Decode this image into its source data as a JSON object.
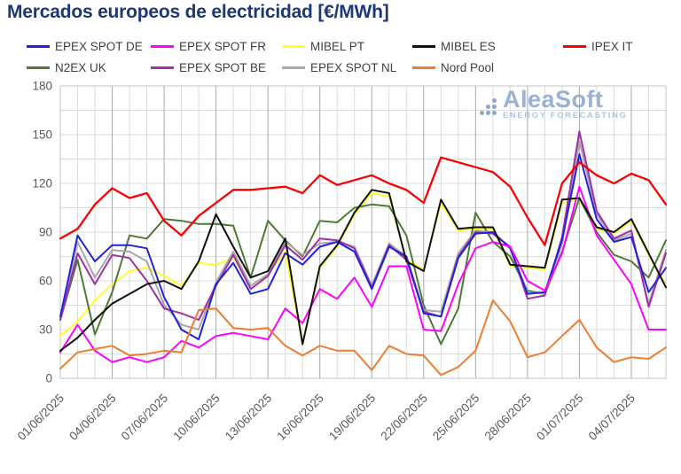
{
  "title": "Mercados europeos de electricidad [€/MWh]",
  "logo": {
    "name": "AleaSoft",
    "subtitle": "ENERGY FORECASTING"
  },
  "axis": {
    "label_color": "#595959",
    "grid_minor_color": "#dcdcdc",
    "grid_major_color": "#a9a9a9",
    "border_color": "#c6c6c6"
  },
  "chart_data": {
    "type": "line",
    "title": "Mercados europeos de electricidad [€/MWh]",
    "xlabel": "",
    "ylabel": "",
    "ylim": [
      0,
      180
    ],
    "y_major_step": 30,
    "y_minor_step": 15,
    "grid": true,
    "legend_position": "top",
    "x_tick_every": 3,
    "x_tick_labels": [
      "01/06/2025",
      "04/06/2025",
      "07/06/2025",
      "10/06/2025",
      "13/06/2025",
      "16/06/2025",
      "19/06/2025",
      "22/06/2025",
      "25/06/2025",
      "28/06/2025",
      "01/07/2025",
      "04/07/2025"
    ],
    "dates": [
      "01/06/2025",
      "02/06/2025",
      "03/06/2025",
      "04/06/2025",
      "05/06/2025",
      "06/06/2025",
      "07/06/2025",
      "08/06/2025",
      "09/06/2025",
      "10/06/2025",
      "11/06/2025",
      "12/06/2025",
      "13/06/2025",
      "14/06/2025",
      "15/06/2025",
      "16/06/2025",
      "17/06/2025",
      "18/06/2025",
      "19/06/2025",
      "20/06/2025",
      "21/06/2025",
      "22/06/2025",
      "23/06/2025",
      "24/06/2025",
      "25/06/2025",
      "26/06/2025",
      "27/06/2025",
      "28/06/2025",
      "29/06/2025",
      "30/06/2025",
      "01/07/2025",
      "02/07/2025",
      "03/07/2025",
      "04/07/2025",
      "05/07/2025",
      "06/07/2025"
    ],
    "series": [
      {
        "name": "EPEX SPOT DE",
        "color": "#2222dd",
        "values": [
          38,
          88,
          72,
          82,
          82,
          80,
          50,
          30,
          24,
          58,
          71,
          52,
          55,
          77,
          70,
          81,
          84,
          78,
          55,
          81,
          75,
          40,
          38,
          74,
          89,
          90,
          80,
          52,
          53,
          85,
          138,
          98,
          84,
          87,
          53,
          68
        ]
      },
      {
        "name": "EPEX SPOT FR",
        "color": "#ff00ff",
        "values": [
          16,
          33,
          17,
          10,
          13,
          10,
          13,
          23,
          19,
          26,
          28,
          26,
          24,
          43,
          34,
          55,
          49,
          62,
          44,
          69,
          69,
          30,
          29,
          58,
          80,
          84,
          81,
          60,
          54,
          77,
          118,
          88,
          73,
          58,
          30,
          30
        ]
      },
      {
        "name": "MIBEL PT",
        "color": "#ffff2e",
        "values": [
          26,
          35,
          48,
          58,
          66,
          68,
          63,
          57,
          71,
          70,
          74,
          57,
          64,
          78,
          21,
          68,
          81,
          101,
          114,
          112,
          73,
          67,
          108,
          91,
          92,
          92,
          69,
          68,
          67,
          108,
          110,
          92,
          89,
          97,
          76,
          57
        ]
      },
      {
        "name": "MIBEL ES",
        "color": "#111111",
        "values": [
          17,
          25,
          36,
          46,
          52,
          58,
          60,
          55,
          72,
          101,
          81,
          62,
          66,
          86,
          21,
          69,
          82,
          102,
          116,
          114,
          72,
          66,
          110,
          92,
          93,
          93,
          70,
          69,
          68,
          110,
          111,
          93,
          90,
          98,
          77,
          56
        ]
      },
      {
        "name": "IPEX IT",
        "color": "#fe0000",
        "values": [
          86,
          92,
          107,
          117,
          111,
          114,
          97,
          88,
          100,
          108,
          116,
          116,
          117,
          118,
          114,
          125,
          119,
          122,
          125,
          120,
          116,
          108,
          136,
          133,
          130,
          127,
          118,
          99,
          82,
          120,
          133,
          125,
          120,
          126,
          122,
          107
        ]
      },
      {
        "name": "N2EX UK",
        "color": "#4e7a35",
        "values": [
          36,
          73,
          27,
          53,
          88,
          86,
          98,
          97,
          95,
          95,
          94,
          62,
          97,
          85,
          75,
          97,
          96,
          105,
          107,
          106,
          88,
          45,
          21,
          43,
          102,
          84,
          75,
          54,
          52,
          78,
          111,
          90,
          76,
          72,
          62,
          85
        ]
      },
      {
        "name": "EPEX SPOT BE",
        "color": "#a030a8",
        "values": [
          36,
          77,
          58,
          76,
          74,
          60,
          43,
          40,
          36,
          57,
          76,
          55,
          63,
          82,
          73,
          86,
          85,
          80,
          56,
          82,
          73,
          41,
          38,
          75,
          90,
          89,
          81,
          49,
          51,
          87,
          152,
          103,
          86,
          91,
          44,
          77
        ]
      },
      {
        "name": "EPEX SPOT NL",
        "color": "#a8a8a8",
        "values": [
          36,
          84,
          62,
          79,
          78,
          72,
          45,
          33,
          30,
          59,
          78,
          57,
          64,
          84,
          76,
          83,
          84,
          81,
          57,
          83,
          75,
          42,
          41,
          77,
          91,
          90,
          80,
          53,
          52,
          83,
          146,
          101,
          85,
          89,
          46,
          79
        ]
      },
      {
        "name": "Nord Pool",
        "color": "#ed7d31",
        "values": [
          6,
          16,
          18,
          20,
          14,
          15,
          17,
          16,
          42,
          43,
          31,
          30,
          31,
          20,
          14,
          20,
          17,
          17,
          5,
          20,
          15,
          14,
          2,
          7,
          17,
          48,
          35,
          13,
          16,
          26,
          36,
          19,
          10,
          13,
          12,
          19
        ]
      }
    ]
  }
}
